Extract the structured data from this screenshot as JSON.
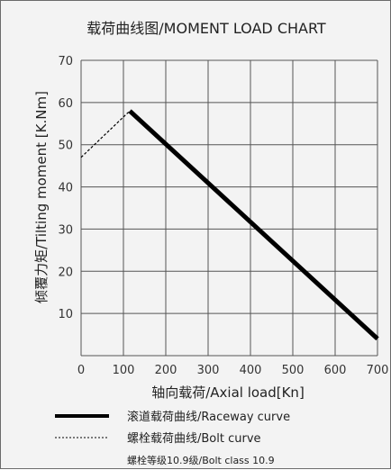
{
  "chart_data": {
    "type": "line",
    "title": "载荷曲线图/MOMENT LOAD CHART",
    "xlabel": "轴向载荷/Axial load[Kn]",
    "ylabel": "倾覆力矩/Tilting moment [K.Nm]",
    "xlim": [
      0,
      700
    ],
    "ylim": [
      0,
      70
    ],
    "x_ticks": [
      "0",
      "100",
      "200",
      "300",
      "400",
      "500",
      "600",
      "700"
    ],
    "y_ticks": [
      "10",
      "20",
      "30",
      "40",
      "50",
      "60",
      "70"
    ],
    "grid": true,
    "series": [
      {
        "name": "滚道载荷曲线/Raceway curve",
        "style": "solid-thick",
        "color": "#000000",
        "x": [
          115,
          700
        ],
        "y": [
          58,
          4
        ]
      },
      {
        "name": "螺栓载荷曲线/Bolt curve",
        "style": "dashed-thin",
        "color": "#000000",
        "x": [
          0,
          115
        ],
        "y": [
          47,
          58
        ]
      }
    ],
    "note": "螺栓等级10.9级/Bolt class 10.9"
  }
}
